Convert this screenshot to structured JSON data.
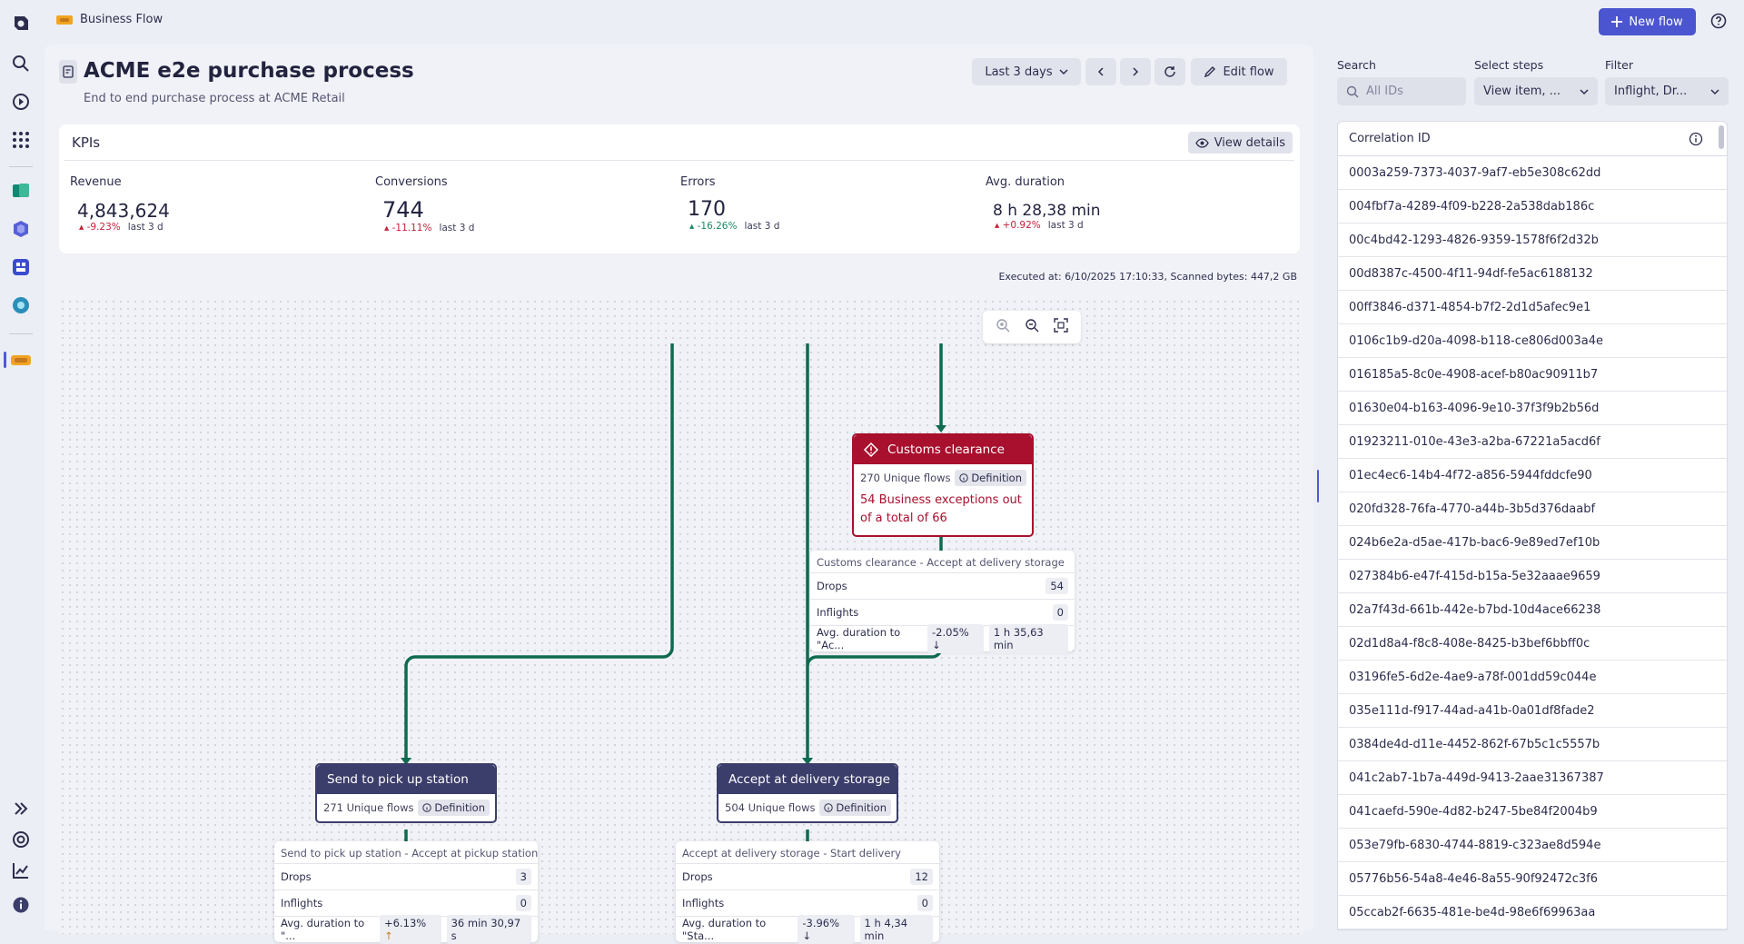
{
  "app": {
    "name": "Business Flow"
  },
  "header": {
    "new_flow_label": "New flow"
  },
  "page": {
    "title": "ACME e2e purchase process",
    "subtitle": "End to end purchase process at ACME Retail"
  },
  "toolbar": {
    "timeframe": "Last 3 days",
    "edit_flow_label": "Edit flow"
  },
  "kpis": {
    "title": "KPIs",
    "view_details_label": "View details",
    "items": [
      {
        "label": "Revenue",
        "value": "4,843,624",
        "trend": "-9.23%",
        "period": "last 3 d"
      },
      {
        "label": "Conversions",
        "value": "744",
        "trend": "-11.11%",
        "period": "last 3 d"
      },
      {
        "label": "Errors",
        "value": "170",
        "trend": "-16.26%",
        "period": "last 3 d"
      },
      {
        "label": "Avg. duration",
        "value": "8 h 28,38 min",
        "trend": "+0.92%",
        "period": "last 3 d"
      }
    ]
  },
  "executed_text": "Executed at: 6/10/2025 17:10:33, Scanned bytes: 447,2 GB",
  "flow": {
    "edge_color": "#0f6b4f",
    "error_color": "#a8102e",
    "node_color": "#3b3d6b",
    "customs": {
      "title": "Customs clearance",
      "flows": "270 Unique flows",
      "definition": "Definition",
      "exceptions": "54 Business exceptions out of a total of 66"
    },
    "customs_edge": {
      "title": "Customs clearance - Accept at delivery storage",
      "drops_label": "Drops",
      "drops": "54",
      "inflights_label": "Inflights",
      "inflights": "0",
      "avg_label": "Avg. duration to \"Ac...",
      "avg_trend": "-2.05%",
      "avg_value": "1 h 35,63 min"
    },
    "pickup": {
      "title": "Send to pick up station",
      "flows": "271 Unique flows",
      "definition": "Definition"
    },
    "pickup_edge": {
      "title": "Send to pick up station - Accept at pickup station",
      "drops_label": "Drops",
      "drops": "3",
      "inflights_label": "Inflights",
      "inflights": "0",
      "avg_label": "Avg. duration to \"...",
      "avg_trend": "+6.13%",
      "avg_value": "36 min 30,97 s"
    },
    "delivery": {
      "title": "Accept at delivery storage",
      "flows": "504 Unique flows",
      "definition": "Definition"
    },
    "delivery_edge": {
      "title": "Accept at delivery storage - Start delivery",
      "drops_label": "Drops",
      "drops": "12",
      "inflights_label": "Inflights",
      "inflights": "0",
      "avg_label": "Avg. duration to \"Sta...",
      "avg_trend": "-3.96%",
      "avg_value": "1 h 4,34 min"
    }
  },
  "filters": {
    "search_label": "Search",
    "search_placeholder": "All IDs",
    "steps_label": "Select steps",
    "steps_value": "View item, ...",
    "filter_label": "Filter",
    "filter_value": "Inflight, Dr..."
  },
  "table": {
    "header": "Correlation ID",
    "rows": [
      "0003a259-7373-4037-9af7-eb5e308c62dd",
      "004fbf7a-4289-4f09-b228-2a538dab186c",
      "00c4bd42-1293-4826-9359-1578f6f2d32b",
      "00d8387c-4500-4f11-94df-fe5ac6188132",
      "00ff3846-d371-4854-b7f2-2d1d5afec9e1",
      "0106c1b9-d20a-4098-b118-ce806d003a4e",
      "016185a5-8c0e-4908-acef-b80ac90911b7",
      "01630e04-b163-4096-9e10-37f3f9b2b56d",
      "01923211-010e-43e3-a2ba-67221a5acd6f",
      "01ec4ec6-14b4-4f72-a856-5944fddcfe90",
      "020fd328-76fa-4770-a44b-3b5d376daabf",
      "024b6e2a-d5ae-417b-bac6-9e89ed7ef10b",
      "027384b6-e47f-415d-b15a-5e32aaae9659",
      "02a7f43d-661b-442e-b7bd-10d4ace66238",
      "02d1d8a4-f8c8-408e-8425-b3bef6bbff0c",
      "03196fe5-6d2e-4ae9-a78f-001dd59c044e",
      "035e111d-f917-44ad-a41b-0a01df8fade2",
      "0384de4d-d11e-4452-862f-67b5c1c5557b",
      "041c2ab7-1b7a-449d-9413-2aae31367387",
      "041caefd-590e-4d82-b247-5be84f2004b9",
      "053e79fb-6830-4744-8819-c323ae8d594e",
      "05776b56-54a8-4e46-8a55-90f92472c3f6",
      "05ccab2f-6635-481e-be4d-98e6f69963aa"
    ]
  }
}
